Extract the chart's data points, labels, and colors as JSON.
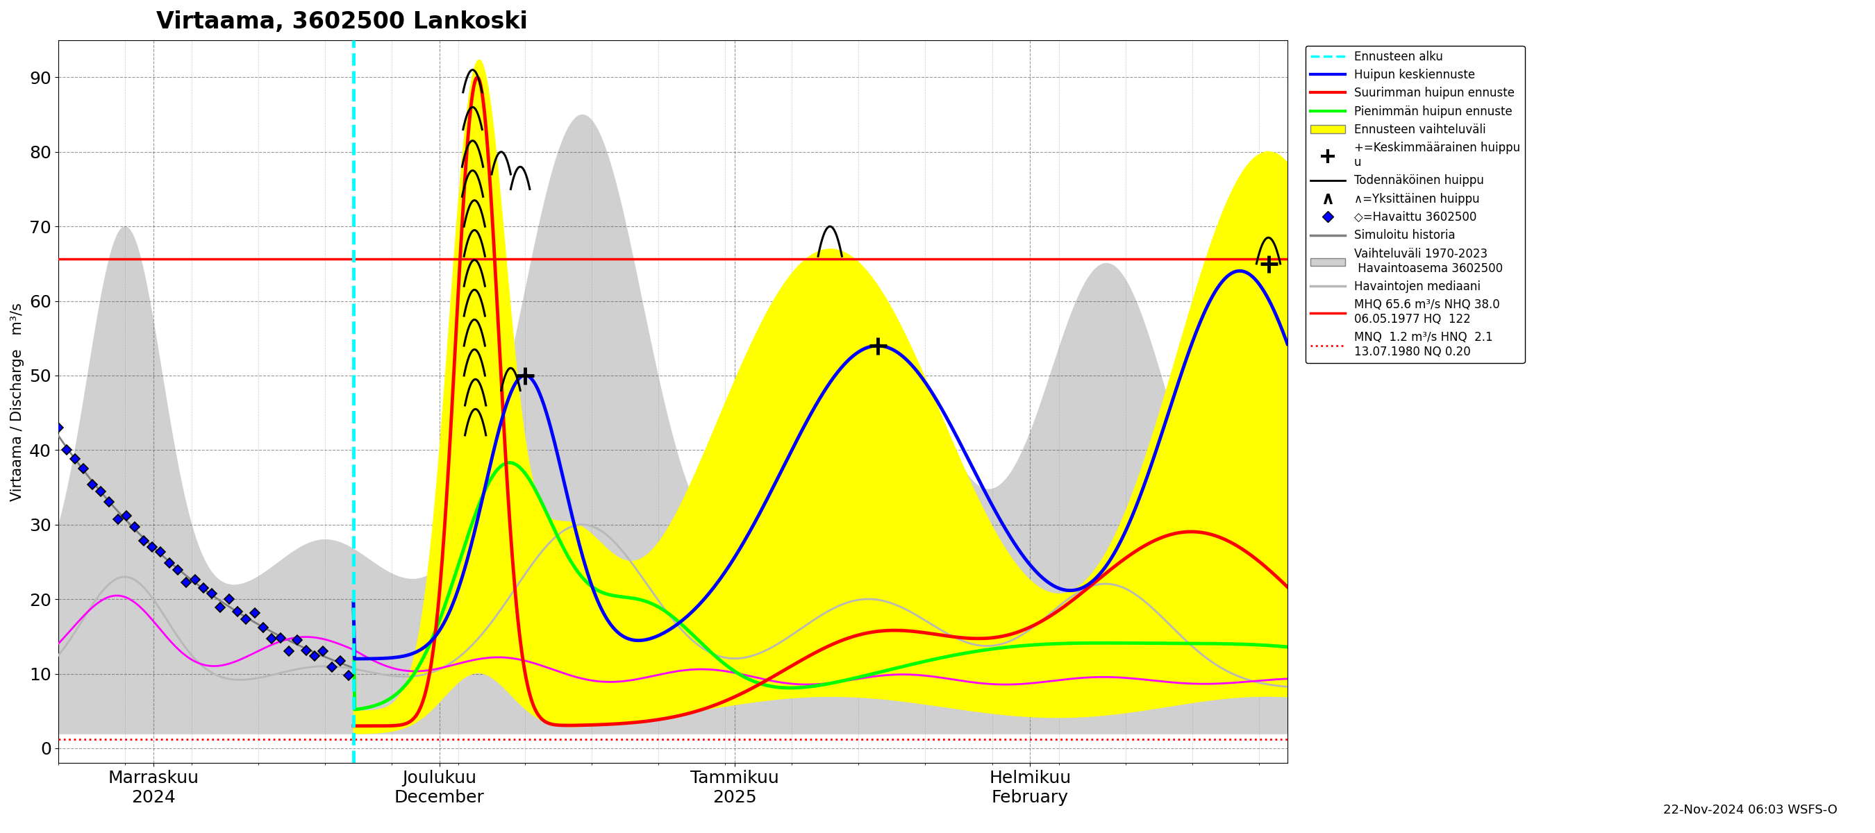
{
  "title": "Virtaama, 3602500 Lankoski",
  "ylabel_fi": "Virtaama / Discharge",
  "ylabel_unit": "m³/s",
  "ylim": [
    -2,
    95
  ],
  "yticks": [
    0,
    10,
    20,
    30,
    40,
    50,
    60,
    70,
    80,
    90
  ],
  "background_color": "#ffffff",
  "MHQ_line": 65.6,
  "MNQ_line": 1.2,
  "legend_texts": [
    "Ennusteen alku",
    "Huipun keskiennuste",
    "Suurimman huipun ennuste",
    "Pienimmän huipun ennuste",
    "Ennusteen vaihteluväli",
    "+=Keskimmäärainen huippu\nu",
    "Todennäköinen huippu",
    "∧=Yksittäinen huippu",
    "◇=Havaittu 3602500",
    "Simuloitu historia",
    "Vaihteluväli 1970-2023\n Havaintoasema 3602500",
    "Havaintojen mediaani",
    "MHQ 65.6 m³/s NHQ 38.0\n06.05.1977 HQ  122",
    "MNQ  1.2 m³/s HNQ  2.1\n13.07.1980 NQ 0.20"
  ],
  "footnote": "22-Nov-2024 06:03 WSFS-O"
}
